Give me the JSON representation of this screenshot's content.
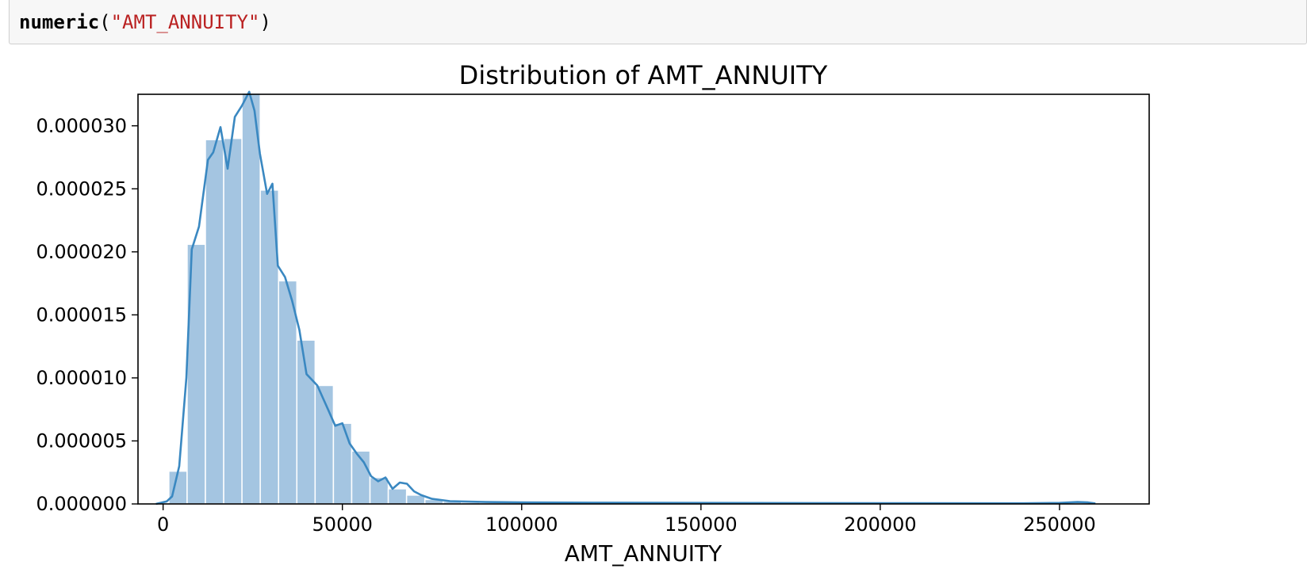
{
  "code_cell": {
    "function_name": "numeric",
    "open_paren": "(",
    "argument": "\"AMT_ANNUITY\"",
    "close_paren": ")"
  },
  "chart_data": {
    "type": "bar",
    "title": "Distribution of AMT_ANNUITY",
    "xlabel": "AMT_ANNUITY",
    "ylabel": "",
    "xlim": [
      -7000,
      275000
    ],
    "ylim": [
      0,
      3.25e-05
    ],
    "bar_color": "#a4c5e1",
    "line_color": "#3a88c1",
    "grid": false,
    "x_ticks": [
      0,
      50000,
      100000,
      150000,
      200000,
      250000
    ],
    "x_tick_labels": [
      "0",
      "50000",
      "100000",
      "150000",
      "200000",
      "250000"
    ],
    "y_ticks": [
      0,
      5e-06,
      1e-05,
      1.5e-05,
      2e-05,
      2.5e-05,
      3e-05
    ],
    "y_tick_labels": [
      "0.000000",
      "0.000005",
      "0.000010",
      "0.000015",
      "0.000020",
      "0.000025",
      "0.000030"
    ],
    "histogram": {
      "bin_edges": [
        1600,
        6700,
        11800,
        16900,
        22000,
        27100,
        32200,
        37300,
        42400,
        47500,
        52600,
        57700,
        62800,
        67900,
        73000,
        78100,
        83200,
        88300,
        93400,
        98500,
        103600
      ],
      "values": [
        2.6e-06,
        2.06e-05,
        2.89e-05,
        2.9e-05,
        3.26e-05,
        2.49e-05,
        1.77e-05,
        1.3e-05,
        9.4e-06,
        6.4e-06,
        4.2e-06,
        2.1e-06,
        1.2e-06,
        7e-07,
        3.5e-07,
        2e-07,
        1.2e-07,
        8e-08,
        6e-08,
        4e-08
      ]
    },
    "kde": {
      "x": [
        -2000,
        1000,
        2500,
        4500,
        6500,
        8000,
        10000,
        12500,
        14000,
        16000,
        18000,
        20000,
        22000,
        24000,
        25500,
        27000,
        29000,
        30500,
        32000,
        34000,
        36000,
        38000,
        40000,
        43000,
        46000,
        48000,
        50000,
        52000,
        54000,
        56000,
        58000,
        60000,
        62000,
        64000,
        66000,
        68000,
        70000,
        72000,
        75000,
        80000,
        90000,
        100000,
        120000,
        150000,
        200000,
        240000,
        250000,
        255000,
        258000,
        260000
      ],
      "y": [
        0,
        2e-07,
        6e-07,
        3e-06,
        1e-05,
        2.02e-05,
        2.2e-05,
        2.73e-05,
        2.79e-05,
        2.99e-05,
        2.66e-05,
        3.07e-05,
        3.16e-05,
        3.27e-05,
        3.12e-05,
        2.78e-05,
        2.46e-05,
        2.54e-05,
        1.89e-05,
        1.8e-05,
        1.61e-05,
        1.38e-05,
        1.03e-05,
        9.4e-06,
        7.5e-06,
        6.2e-06,
        6.4e-06,
        4.8e-06,
        4e-06,
        3.3e-06,
        2.2e-06,
        1.8e-06,
        2.1e-06,
        1.2e-06,
        1.7e-06,
        1.6e-06,
        1e-06,
        7e-07,
        4e-07,
        2.2e-07,
        1.5e-07,
        1.2e-07,
        1e-07,
        8e-08,
        6e-08,
        5e-08,
        8e-08,
        1.5e-07,
        1.2e-07,
        4e-08
      ]
    }
  }
}
